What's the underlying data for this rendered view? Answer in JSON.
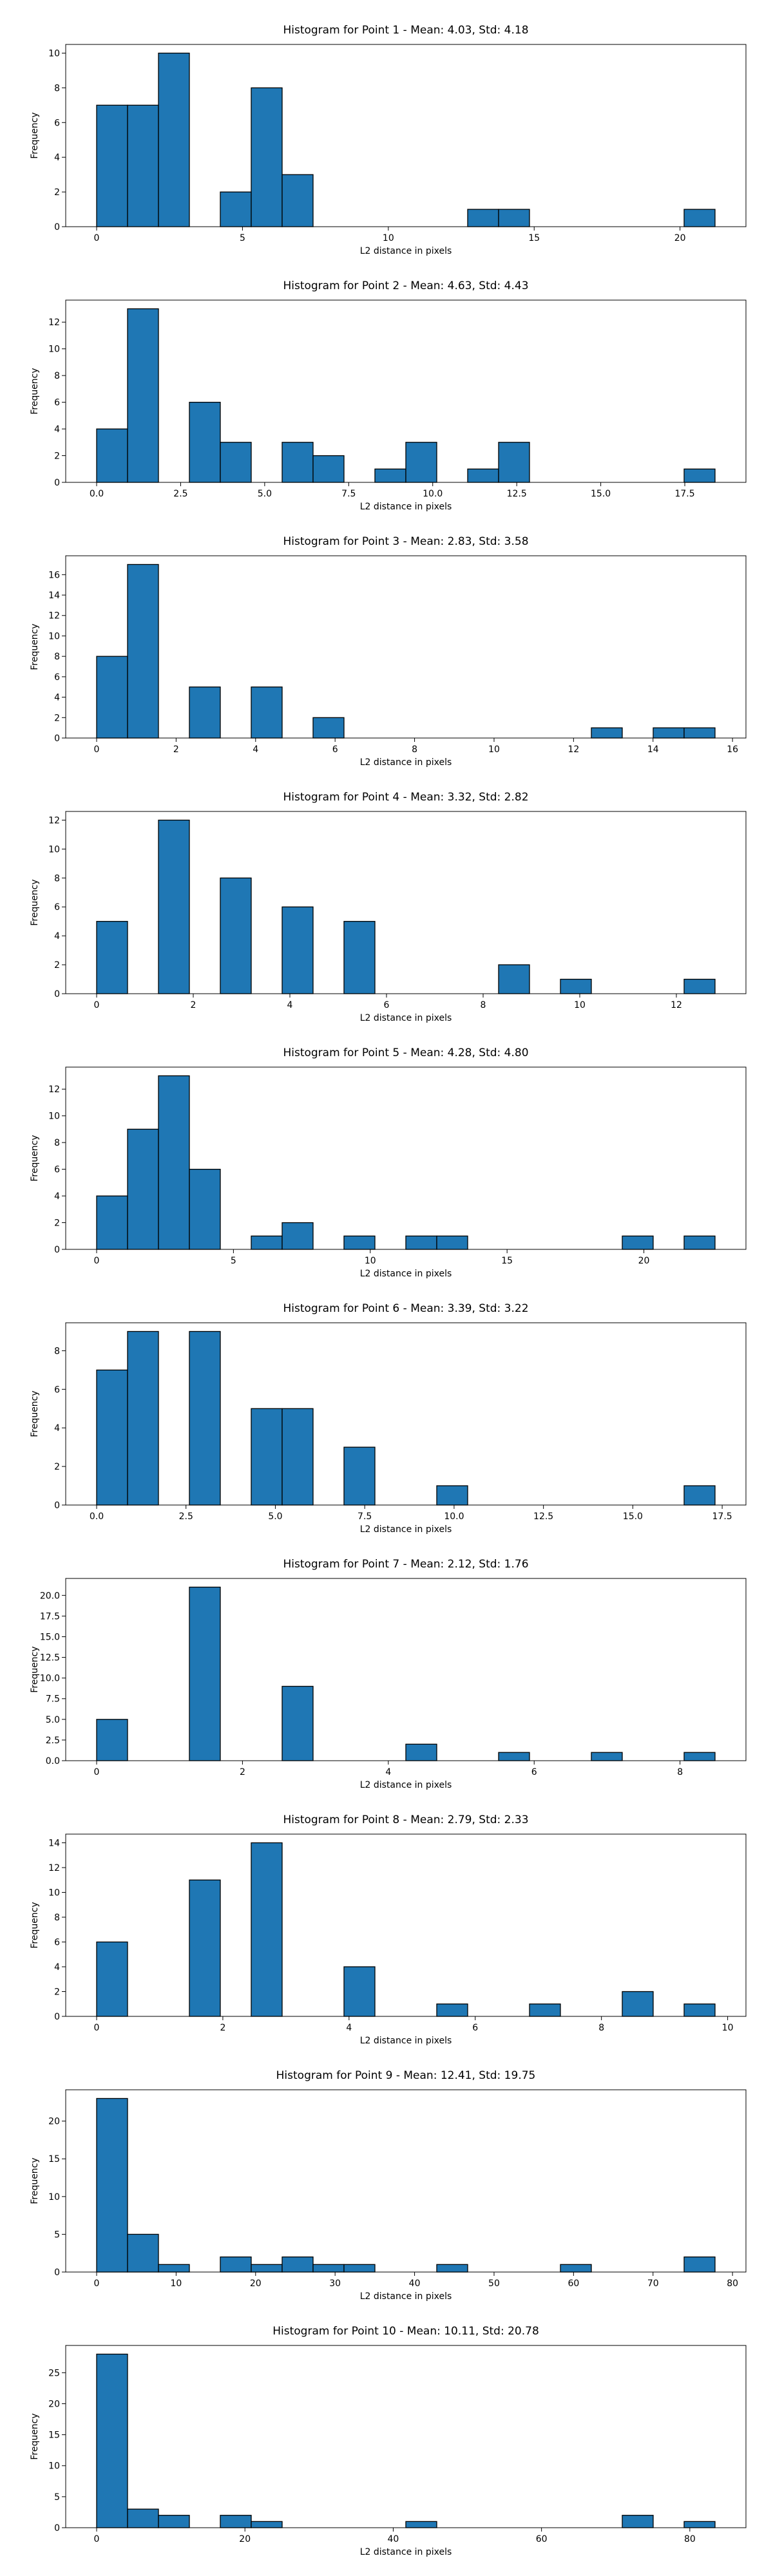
{
  "chart_data": [
    {
      "type": "histogram",
      "title": "Histogram for Point 1 - Mean: 4.03, Std: 4.18",
      "xlabel": "L2 distance in pixels",
      "ylabel": "Frequency",
      "color": "#1f77b4",
      "edgecolor": "#000000",
      "bins": [
        0,
        1.06,
        2.12,
        3.18,
        4.24,
        5.3,
        6.36,
        7.42,
        8.48,
        9.54,
        10.6,
        11.66,
        12.72,
        13.78,
        14.84,
        15.9,
        16.96,
        18.02,
        19.08,
        20.14,
        21.2
      ],
      "counts": [
        7,
        7,
        10,
        0,
        2,
        8,
        3,
        0,
        0,
        0,
        0,
        0,
        1,
        1,
        0,
        0,
        0,
        0,
        0,
        1
      ],
      "xlim": [
        -1.06,
        22.26
      ],
      "xticks": [
        0,
        5,
        10,
        15,
        20
      ],
      "ylim": [
        0,
        10.5
      ],
      "yticks": [
        0,
        2,
        4,
        6,
        8,
        10
      ]
    },
    {
      "type": "histogram",
      "title": "Histogram for Point 2 - Mean: 4.63, Std: 4.43",
      "xlabel": "L2 distance in pixels",
      "ylabel": "Frequency",
      "color": "#1f77b4",
      "edgecolor": "#000000",
      "bins": [
        0,
        0.92,
        1.84,
        2.76,
        3.68,
        4.6,
        5.52,
        6.44,
        7.36,
        8.28,
        9.2,
        10.12,
        11.04,
        11.96,
        12.88,
        13.8,
        14.72,
        15.64,
        16.56,
        17.48,
        18.4
      ],
      "counts": [
        4,
        13,
        0,
        6,
        3,
        0,
        3,
        2,
        0,
        1,
        3,
        0,
        1,
        3,
        0,
        0,
        0,
        0,
        0,
        1
      ],
      "xlim": [
        -0.92,
        19.32
      ],
      "xticks": [
        {
          "value": 0,
          "label": "0.0"
        },
        2.5,
        {
          "value": 5,
          "label": "5.0"
        },
        7.5,
        {
          "value": 10,
          "label": "10.0"
        },
        12.5,
        {
          "value": 15,
          "label": "15.0"
        },
        17.5
      ],
      "ylim": [
        0,
        13.65
      ],
      "yticks": [
        0,
        2,
        4,
        6,
        8,
        10,
        12
      ]
    },
    {
      "type": "histogram",
      "title": "Histogram for Point 3 - Mean: 2.83, Std: 3.58",
      "xlabel": "L2 distance in pixels",
      "ylabel": "Frequency",
      "color": "#1f77b4",
      "edgecolor": "#000000",
      "bins": [
        0,
        0.778,
        1.556,
        2.334,
        3.112,
        3.89,
        4.668,
        5.446,
        6.224,
        7.002,
        7.78,
        8.558,
        9.336,
        10.114,
        10.892,
        11.67,
        12.448,
        13.226,
        14.004,
        14.782,
        15.56
      ],
      "counts": [
        8,
        17,
        0,
        5,
        0,
        5,
        0,
        2,
        0,
        0,
        0,
        0,
        0,
        0,
        0,
        0,
        1,
        0,
        1,
        1
      ],
      "xlim": [
        -0.778,
        16.338
      ],
      "xticks": [
        0,
        2,
        4,
        6,
        8,
        10,
        12,
        14,
        16
      ],
      "ylim": [
        0,
        17.85
      ],
      "yticks": [
        0,
        2,
        4,
        6,
        8,
        10,
        12,
        14,
        16
      ]
    },
    {
      "type": "histogram",
      "title": "Histogram for Point 4 - Mean: 3.32, Std: 2.82",
      "xlabel": "L2 distance in pixels",
      "ylabel": "Frequency",
      "color": "#1f77b4",
      "edgecolor": "#000000",
      "bins": [
        0,
        0.64,
        1.28,
        1.92,
        2.56,
        3.2,
        3.84,
        4.48,
        5.12,
        5.76,
        6.4,
        7.04,
        7.68,
        8.32,
        8.96,
        9.6,
        10.24,
        10.88,
        11.52,
        12.16,
        12.8
      ],
      "counts": [
        5,
        0,
        12,
        0,
        8,
        0,
        6,
        0,
        5,
        0,
        0,
        0,
        0,
        2,
        0,
        1,
        0,
        0,
        0,
        1
      ],
      "xlim": [
        -0.64,
        13.44
      ],
      "xticks": [
        0,
        2,
        4,
        6,
        8,
        10,
        12
      ],
      "ylim": [
        0,
        12.6
      ],
      "yticks": [
        0,
        2,
        4,
        6,
        8,
        10,
        12
      ]
    },
    {
      "type": "histogram",
      "title": "Histogram for Point 5 - Mean: 4.28, Std: 4.80",
      "xlabel": "L2 distance in pixels",
      "ylabel": "Frequency",
      "color": "#1f77b4",
      "edgecolor": "#000000",
      "bins": [
        0,
        1.13,
        2.26,
        3.39,
        4.52,
        5.65,
        6.78,
        7.91,
        9.04,
        10.17,
        11.3,
        12.43,
        13.56,
        14.69,
        15.82,
        16.95,
        18.08,
        19.21,
        20.34,
        21.47,
        22.6
      ],
      "counts": [
        4,
        9,
        13,
        6,
        0,
        1,
        2,
        0,
        1,
        0,
        1,
        1,
        0,
        0,
        0,
        0,
        0,
        1,
        0,
        1
      ],
      "xlim": [
        -1.13,
        23.73
      ],
      "xticks": [
        0,
        5,
        10,
        15,
        20
      ],
      "ylim": [
        0,
        13.65
      ],
      "yticks": [
        0,
        2,
        4,
        6,
        8,
        10,
        12
      ]
    },
    {
      "type": "histogram",
      "title": "Histogram for Point 6 - Mean: 3.39, Std: 3.22",
      "xlabel": "L2 distance in pixels",
      "ylabel": "Frequency",
      "color": "#1f77b4",
      "edgecolor": "#000000",
      "bins": [
        0,
        0.865,
        1.73,
        2.595,
        3.46,
        4.325,
        5.19,
        6.055,
        6.92,
        7.785,
        8.65,
        9.515,
        10.38,
        11.245,
        12.11,
        12.975,
        13.84,
        14.705,
        15.57,
        16.435,
        17.3
      ],
      "counts": [
        7,
        9,
        0,
        9,
        0,
        5,
        5,
        0,
        3,
        0,
        0,
        1,
        0,
        0,
        0,
        0,
        0,
        0,
        0,
        1
      ],
      "xlim": [
        -0.865,
        18.165
      ],
      "xticks": [
        {
          "value": 0,
          "label": "0.0"
        },
        2.5,
        {
          "value": 5,
          "label": "5.0"
        },
        7.5,
        {
          "value": 10,
          "label": "10.0"
        },
        12.5,
        {
          "value": 15,
          "label": "15.0"
        },
        17.5
      ],
      "ylim": [
        0,
        9.45
      ],
      "yticks": [
        0,
        2,
        4,
        6,
        8
      ]
    },
    {
      "type": "histogram",
      "title": "Histogram for Point 7 - Mean: 2.12, Std: 1.76",
      "xlabel": "L2 distance in pixels",
      "ylabel": "Frequency",
      "color": "#1f77b4",
      "edgecolor": "#000000",
      "bins": [
        0,
        0.424,
        0.848,
        1.272,
        1.696,
        2.12,
        2.544,
        2.968,
        3.392,
        3.816,
        4.24,
        4.664,
        5.088,
        5.512,
        5.936,
        6.36,
        6.784,
        7.208,
        7.632,
        8.056,
        8.48
      ],
      "counts": [
        5,
        0,
        0,
        21,
        0,
        0,
        9,
        0,
        0,
        0,
        2,
        0,
        0,
        1,
        0,
        0,
        1,
        0,
        0,
        1
      ],
      "xlim": [
        -0.424,
        8.904
      ],
      "xticks": [
        0,
        2,
        4,
        6,
        8
      ],
      "ylim": [
        0,
        22.05
      ],
      "yticks": [
        {
          "value": 0,
          "label": "0.0"
        },
        2.5,
        {
          "value": 5,
          "label": "5.0"
        },
        7.5,
        {
          "value": 10,
          "label": "10.0"
        },
        12.5,
        {
          "value": 15,
          "label": "15.0"
        },
        17.5,
        {
          "value": 20,
          "label": "20.0"
        }
      ]
    },
    {
      "type": "histogram",
      "title": "Histogram for Point 8 - Mean: 2.79, Std: 2.33",
      "xlabel": "L2 distance in pixels",
      "ylabel": "Frequency",
      "color": "#1f77b4",
      "edgecolor": "#000000",
      "bins": [
        0,
        0.49,
        0.98,
        1.47,
        1.96,
        2.45,
        2.94,
        3.43,
        3.92,
        4.41,
        4.9,
        5.39,
        5.88,
        6.37,
        6.86,
        7.35,
        7.84,
        8.33,
        8.82,
        9.31,
        9.8
      ],
      "counts": [
        6,
        0,
        0,
        11,
        0,
        14,
        0,
        0,
        4,
        0,
        0,
        1,
        0,
        0,
        1,
        0,
        0,
        2,
        0,
        1
      ],
      "xlim": [
        -0.49,
        10.29
      ],
      "xticks": [
        0,
        2,
        4,
        6,
        8,
        10
      ],
      "ylim": [
        0,
        14.7
      ],
      "yticks": [
        0,
        2,
        4,
        6,
        8,
        10,
        12,
        14
      ]
    },
    {
      "type": "histogram",
      "title": "Histogram for Point 9 - Mean: 12.41, Std: 19.75",
      "xlabel": "L2 distance in pixels",
      "ylabel": "Frequency",
      "color": "#1f77b4",
      "edgecolor": "#000000",
      "bins": [
        0,
        3.89,
        7.78,
        11.67,
        15.56,
        19.45,
        23.34,
        27.23,
        31.12,
        35.01,
        38.9,
        42.79,
        46.68,
        50.57,
        54.46,
        58.35,
        62.24,
        66.13,
        70.02,
        73.91,
        77.8
      ],
      "counts": [
        23,
        5,
        1,
        0,
        2,
        1,
        2,
        1,
        1,
        0,
        0,
        1,
        0,
        0,
        0,
        1,
        0,
        0,
        0,
        2
      ],
      "xlim": [
        -3.89,
        81.69
      ],
      "xticks": [
        0,
        10,
        20,
        30,
        40,
        50,
        60,
        70,
        80
      ],
      "ylim": [
        0,
        24.15
      ],
      "yticks": [
        0,
        5,
        10,
        15,
        20
      ]
    },
    {
      "type": "histogram",
      "title": "Histogram for Point 10 - Mean: 10.11, Std: 20.78",
      "xlabel": "L2 distance in pixels",
      "ylabel": "Frequency",
      "color": "#1f77b4",
      "edgecolor": "#000000",
      "bins": [
        0,
        4.17,
        8.34,
        12.51,
        16.68,
        20.85,
        25.02,
        29.19,
        33.36,
        37.53,
        41.7,
        45.87,
        50.04,
        54.21,
        58.38,
        62.55,
        66.72,
        70.89,
        75.06,
        79.23,
        83.4
      ],
      "counts": [
        28,
        3,
        2,
        0,
        2,
        1,
        0,
        0,
        0,
        0,
        1,
        0,
        0,
        0,
        0,
        0,
        0,
        2,
        0,
        1
      ],
      "xlim": [
        -4.17,
        87.57
      ],
      "xticks": [
        0,
        20,
        40,
        60,
        80
      ],
      "ylim": [
        0,
        29.4
      ],
      "yticks": [
        0,
        5,
        10,
        15,
        20,
        25
      ]
    }
  ]
}
